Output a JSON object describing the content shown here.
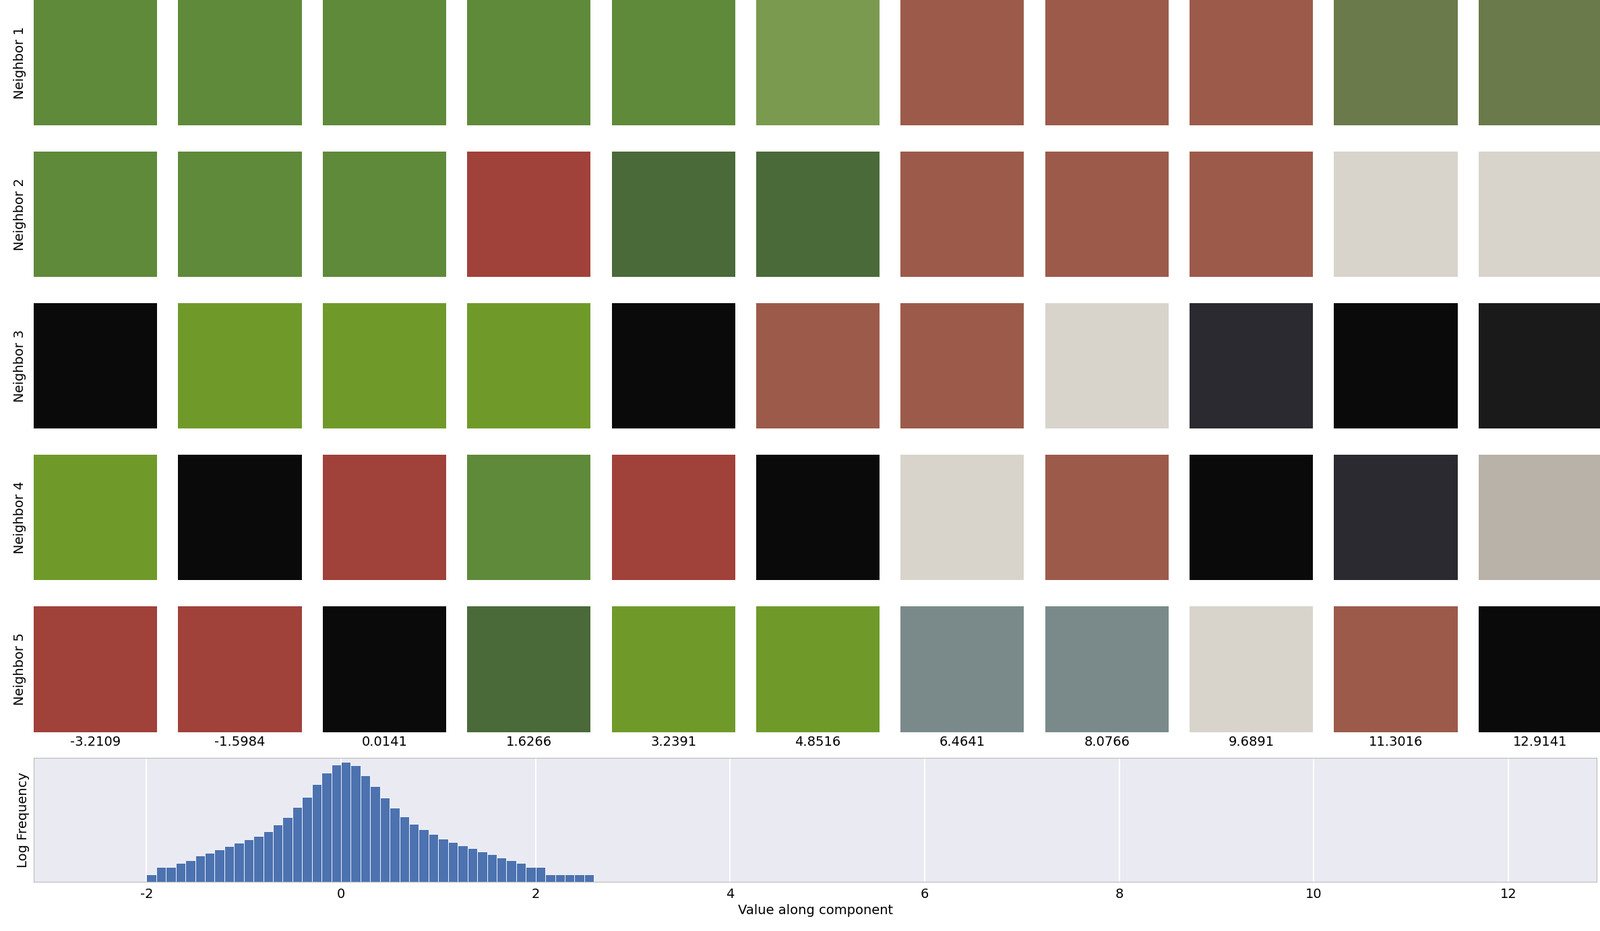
{
  "image_grid": {
    "row_labels": [
      "Neighbor 1",
      "Neighbor 2",
      "Neighbor 3",
      "Neighbor 4",
      "Neighbor 5"
    ],
    "column_values": [
      -3.2109,
      -1.5984,
      0.0141,
      1.6266,
      3.2391,
      4.8516,
      6.4641,
      8.0766,
      9.6891,
      11.3016,
      12.9141
    ]
  },
  "chart_data": {
    "type": "histogram",
    "xlabel": "Value along component",
    "ylabel": "Log Frequency",
    "bins": [
      -2.0,
      -1.9,
      -1.8,
      -1.7,
      -1.6,
      -1.5,
      -1.4,
      -1.3,
      -1.2,
      -1.1,
      -1.0,
      -0.9,
      -0.8,
      -0.7,
      -0.6,
      -0.5,
      -0.4,
      -0.3,
      -0.2,
      -0.1,
      0.0,
      0.1,
      0.2,
      0.3,
      0.4,
      0.5,
      0.6,
      0.7,
      0.8,
      0.9,
      1.0,
      1.1,
      1.2,
      1.3,
      1.4,
      1.5,
      1.6,
      1.7,
      1.8,
      1.9,
      2.0,
      2.1,
      2.2,
      2.3,
      2.4,
      2.5,
      2.6
    ],
    "counts": [
      1,
      2,
      2,
      3,
      4,
      6,
      8,
      11,
      15,
      20,
      27,
      38,
      60,
      110,
      230,
      580,
      1500,
      5000,
      15000,
      32000,
      40000,
      30000,
      11000,
      4000,
      1400,
      550,
      240,
      120,
      70,
      45,
      30,
      22,
      16,
      12,
      9,
      7,
      5,
      4,
      3,
      2,
      2,
      1,
      1,
      1,
      1,
      1
    ],
    "color": "#4c72b0",
    "xlim": [
      -3.16,
      12.91
    ],
    "xticks": [
      -2,
      0,
      2,
      4,
      6,
      8,
      10,
      12
    ],
    "ylim": [
      0.5,
      60000
    ],
    "log": "y",
    "grid": true,
    "tick_labels": "x"
  }
}
